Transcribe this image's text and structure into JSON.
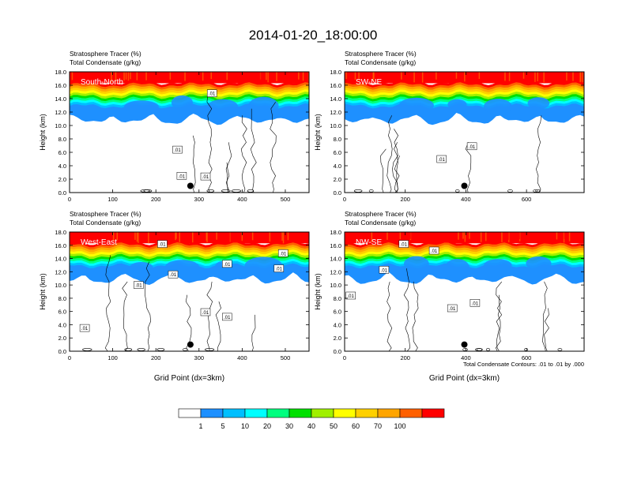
{
  "figure": {
    "title": "2014-01-20_18:00:00",
    "footnote": "Total Condensate Contours: .01 to .01 by .000"
  },
  "colorbar": {
    "colors": [
      "#ffffff",
      "#1e90ff",
      "#00bfff",
      "#00ffff",
      "#00ff7f",
      "#00e000",
      "#a0f000",
      "#ffff00",
      "#ffd000",
      "#ffa500",
      "#ff6000",
      "#ff0000"
    ],
    "labels": [
      "1",
      "5",
      "10",
      "20",
      "30",
      "40",
      "50",
      "60",
      "70",
      "100"
    ]
  },
  "chart_data": [
    {
      "type": "heatmap",
      "panel": "South-North",
      "position": "top-left",
      "label_line1": "Stratosphere Tracer   (%)",
      "label_line2": "Total Condensate   (g/kg)",
      "ylabel": "Height (km)",
      "xlabel": "",
      "xlim": [
        0,
        555
      ],
      "ylim": [
        0,
        18
      ],
      "xticks": [
        0,
        100,
        200,
        300,
        400,
        500
      ],
      "xtick_labels": [
        "0",
        "100",
        "200",
        "300",
        "400",
        "500"
      ],
      "yticks": [
        0,
        2,
        4,
        6,
        8,
        10,
        12,
        14,
        16,
        18
      ],
      "ytick_labels": [
        "0.0",
        "2.0",
        "4.0",
        "6.0",
        "8.0",
        "10.0",
        "12.0",
        "14.0",
        "16.0",
        "18.0"
      ],
      "tropopause_km": 15.0,
      "marker": {
        "x": 280,
        "y": 1.0
      },
      "contour_labels": [
        {
          "text": ".01",
          "x": 330,
          "y": 14.8
        },
        {
          "text": ".01",
          "x": 250,
          "y": 6.4
        },
        {
          "text": ".01",
          "x": 260,
          "y": 2.5
        },
        {
          "text": ".01",
          "x": 315,
          "y": 2.4
        }
      ]
    },
    {
      "type": "heatmap",
      "panel": "SW-NE",
      "position": "top-right",
      "label_line1": "Stratosphere Tracer   (%)",
      "label_line2": "Total Condensate   (g/kg)",
      "ylabel": "Height (km)",
      "xlabel": "",
      "xlim": [
        0,
        790
      ],
      "ylim": [
        0,
        18
      ],
      "xticks": [
        0,
        200,
        400,
        600
      ],
      "xtick_labels": [
        "0",
        "200",
        "400",
        "600"
      ],
      "yticks": [
        0,
        2,
        4,
        6,
        8,
        10,
        12,
        14,
        16,
        18
      ],
      "ytick_labels": [
        "0.0",
        "2.0",
        "4.0",
        "6.0",
        "8.0",
        "10.0",
        "12.0",
        "14.0",
        "16.0",
        "18.0"
      ],
      "tropopause_km": 15.0,
      "marker": {
        "x": 395,
        "y": 1.0
      },
      "contour_labels": [
        {
          "text": ".01",
          "x": 420,
          "y": 6.9
        },
        {
          "text": ".01",
          "x": 320,
          "y": 5.0
        }
      ]
    },
    {
      "type": "heatmap",
      "panel": "West-East",
      "position": "bottom-left",
      "label_line1": "Stratosphere Tracer   (%)",
      "label_line2": "Total Condensate   (g/kg)",
      "ylabel": "Height (km)",
      "xlabel": "Grid Point (dx=3km)",
      "xlim": [
        0,
        555
      ],
      "ylim": [
        0,
        18
      ],
      "xticks": [
        0,
        100,
        200,
        300,
        400,
        500
      ],
      "xtick_labels": [
        "0",
        "100",
        "200",
        "300",
        "400",
        "500"
      ],
      "yticks": [
        0,
        2,
        4,
        6,
        8,
        10,
        12,
        14,
        16,
        18
      ],
      "ytick_labels": [
        "0.0",
        "2.0",
        "4.0",
        "6.0",
        "8.0",
        "10.0",
        "12.0",
        "14.0",
        "16.0",
        "18.0"
      ],
      "tropopause_km": 15.0,
      "marker": {
        "x": 280,
        "y": 1.0
      },
      "contour_labels": [
        {
          "text": ".01",
          "x": 215,
          "y": 16.2
        },
        {
          "text": ".01",
          "x": 365,
          "y": 13.2
        },
        {
          "text": ".01",
          "x": 485,
          "y": 12.5
        },
        {
          "text": ".01",
          "x": 495,
          "y": 14.8
        },
        {
          "text": ".01",
          "x": 240,
          "y": 11.6
        },
        {
          "text": ".01",
          "x": 160,
          "y": 10.0
        },
        {
          "text": ".01",
          "x": 315,
          "y": 5.9
        },
        {
          "text": ".01",
          "x": 365,
          "y": 5.2
        },
        {
          "text": ".01",
          "x": 35,
          "y": 3.5
        }
      ]
    },
    {
      "type": "heatmap",
      "panel": "NW-SE",
      "position": "bottom-right",
      "label_line1": "Stratosphere Tracer   (%)",
      "label_line2": "Total Condensate   (g/kg)",
      "ylabel": "Height (km)",
      "xlabel": "Grid Point (dx=3km)",
      "xlim": [
        0,
        790
      ],
      "ylim": [
        0,
        18
      ],
      "xticks": [
        0,
        200,
        400,
        600
      ],
      "xtick_labels": [
        "0",
        "200",
        "400",
        "600"
      ],
      "yticks": [
        0,
        2,
        4,
        6,
        8,
        10,
        12,
        14,
        16,
        18
      ],
      "ytick_labels": [
        "0.0",
        "2.0",
        "4.0",
        "6.0",
        "8.0",
        "10.0",
        "12.0",
        "14.0",
        "16.0",
        "18.0"
      ],
      "tropopause_km": 15.0,
      "marker": {
        "x": 395,
        "y": 1.0
      },
      "contour_labels": [
        {
          "text": ".01",
          "x": 195,
          "y": 16.2
        },
        {
          "text": ".01",
          "x": 295,
          "y": 15.2
        },
        {
          "text": ".01",
          "x": 130,
          "y": 12.3
        },
        {
          "text": ".01",
          "x": 20,
          "y": 8.4
        },
        {
          "text": ".01",
          "x": 430,
          "y": 7.3
        },
        {
          "text": ".01",
          "x": 355,
          "y": 6.5
        }
      ]
    }
  ]
}
